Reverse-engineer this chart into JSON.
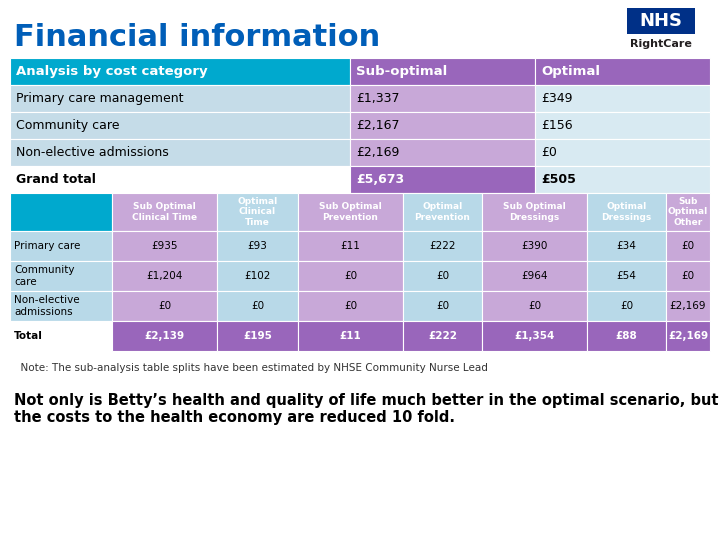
{
  "title": "Financial information",
  "title_color": "#005EB8",
  "background_color": "#FFFFFF",
  "top_table": {
    "header": [
      "Analysis by cost category",
      "Sub-optimal",
      "Optimal"
    ],
    "header_bg": [
      "#00A9CE",
      "#9966BB",
      "#9966BB"
    ],
    "rows": [
      [
        "Primary care management",
        "£1,337",
        "£349"
      ],
      [
        "Community care",
        "£2,167",
        "£156"
      ],
      [
        "Non-elective admissions",
        "£2,169",
        "£0"
      ],
      [
        "Grand total",
        "£5,673",
        "£505"
      ]
    ],
    "row_bg_col0": [
      "#C5DCE8",
      "#C5DCE8",
      "#C5DCE8",
      "#FFFFFF"
    ],
    "row_bg_col1": [
      "#C8A8D8",
      "#C8A8D8",
      "#C8A8D8",
      "#9966BB"
    ],
    "row_bg_col2": [
      "#D8EAF2",
      "#D8EAF2",
      "#D8EAF2",
      "#D8EAF2"
    ]
  },
  "sub_table": {
    "col_headers": [
      "",
      "Sub Optimal\nClinical Time",
      "Optimal\nClinical\nTime",
      "Sub Optimal\nPrevention",
      "Optimal\nPrevention",
      "Sub Optimal\nDressings",
      "Optimal\nDressings",
      "Sub\nOptimal\nOther"
    ],
    "col_header_bg": [
      "#00A9CE",
      "#C8A8D8",
      "#B8D9E8",
      "#C8A8D8",
      "#B8D9E8",
      "#C8A8D8",
      "#B8D9E8",
      "#C8A8D8"
    ],
    "rows": [
      [
        "Primary care",
        "£935",
        "£93",
        "£11",
        "£222",
        "£390",
        "£34",
        "£0"
      ],
      [
        "Community\ncare",
        "£1,204",
        "£102",
        "£0",
        "£0",
        "£964",
        "£54",
        "£0"
      ],
      [
        "Non-elective\nadmissions",
        "£0",
        "£0",
        "£0",
        "£0",
        "£0",
        "£0",
        "£2,169"
      ],
      [
        "Total",
        "£2,139",
        "£195",
        "£11",
        "£222",
        "£1,354",
        "£88",
        "£2,169"
      ]
    ],
    "row_bg": [
      [
        "#B8D9E8",
        "#C8A8D8",
        "#B8D9E8",
        "#C8A8D8",
        "#B8D9E8",
        "#C8A8D8",
        "#B8D9E8",
        "#C8A8D8"
      ],
      [
        "#B8D9E8",
        "#C8A8D8",
        "#B8D9E8",
        "#C8A8D8",
        "#B8D9E8",
        "#C8A8D8",
        "#B8D9E8",
        "#C8A8D8"
      ],
      [
        "#B8D9E8",
        "#C8A8D8",
        "#B8D9E8",
        "#C8A8D8",
        "#B8D9E8",
        "#C8A8D8",
        "#B8D9E8",
        "#C8A8D8"
      ],
      [
        "#FFFFFF",
        "#9966BB",
        "#9966BB",
        "#9966BB",
        "#9966BB",
        "#9966BB",
        "#9966BB",
        "#9966BB"
      ]
    ]
  },
  "note": "  Note: The sub-analysis table splits have been estimated by NHSE Community Nurse Lead",
  "footer": "Not only is Betty’s health and quality of life much better in the optimal scenario, but\nthe costs to the health economy are reduced 10 fold.",
  "footer_fontsize": 10.5
}
